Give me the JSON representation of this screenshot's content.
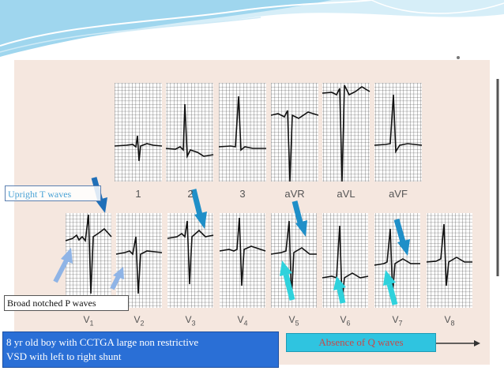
{
  "slide": {
    "upright_label": "Upright T waves",
    "notched_label": "Broad notched P waves",
    "caption_line1": "8 yr old boy with CCTGA large non restrictive",
    "caption_line2": "VSD with left to right shunt",
    "absence_label": "Absence of Q waves",
    "accent_colors": {
      "arrow": "#1f8fc8",
      "arrow_light": "#2fd2dc",
      "caption_bg": "#2a6fd6",
      "absence_bg": "#2fc4e0"
    }
  },
  "limb_leads": [
    {
      "label": "1"
    },
    {
      "label": "2"
    },
    {
      "label": "3"
    },
    {
      "label": "aVR"
    },
    {
      "label": "aVL"
    },
    {
      "label": "aVF"
    }
  ],
  "chest_leads": [
    {
      "letter": "V",
      "sub": "1"
    },
    {
      "letter": "V",
      "sub": "2"
    },
    {
      "letter": "V",
      "sub": "3"
    },
    {
      "letter": "V",
      "sub": "4"
    },
    {
      "letter": "V",
      "sub": "5"
    },
    {
      "letter": "V",
      "sub": "6"
    },
    {
      "letter": "V",
      "sub": "7"
    },
    {
      "letter": "V",
      "sub": "8"
    }
  ]
}
